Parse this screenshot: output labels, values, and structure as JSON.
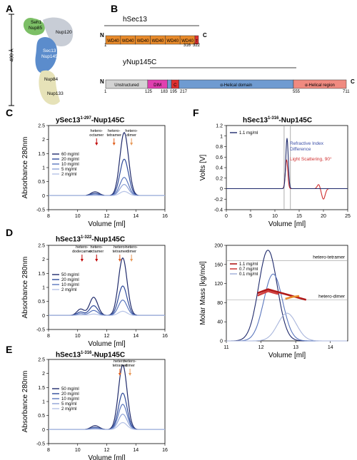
{
  "panels": {
    "A": {
      "label": "A",
      "structure_labels": [
        "Seh1",
        "Nup85",
        "Nup120",
        "Sec13",
        "Nup145",
        "Nup84",
        "Nup133"
      ],
      "scale_label": "~400 Å"
    },
    "B": {
      "label": "B",
      "hsec13": {
        "title": "hSec13",
        "n_label": "N",
        "c_label": "C",
        "domains": [
          "WD40",
          "WD40",
          "WD40",
          "WD40",
          "WD40",
          "WD40",
          "T"
        ],
        "ticks": [
          "1",
          "316",
          "322"
        ]
      },
      "ynup145c": {
        "title": "yNup145C",
        "n_label": "N",
        "c_label": "C",
        "domains": [
          "Unstructured",
          "DIM",
          "C",
          "α-Helical domain",
          "α-Helical region"
        ],
        "ticks": [
          "1",
          "125",
          "183",
          "195",
          "217",
          "555",
          "711"
        ]
      },
      "colors": {
        "wd40": "#e88a2a",
        "unstructured": "#d3d3d3",
        "dim": "#e040b0",
        "c": "#e03030",
        "helical": "#6f9bd1",
        "helical_region": "#f08a80"
      }
    },
    "C": {
      "label": "C",
      "title_main": "ySec13",
      "title_sup": "1-297",
      "title_rest": "-Nup145C",
      "arrows": [
        "hetero-\noctamer",
        "hetero-\ntetramer",
        "hetero-\ndimer"
      ],
      "legend": [
        "60 mg/ml",
        "20 mg/ml",
        "10 mg/ml",
        "5 mg/ml",
        "2 mg/ml"
      ]
    },
    "D": {
      "label": "D",
      "title_main": "hSec13",
      "title_sup": "1-322",
      "title_rest": "-Nup145C",
      "arrows": [
        "hetero-\ndodecamer",
        "hetero-\noctamer",
        "hetero-\ntetramer",
        "hetero-\ndimer"
      ],
      "legend": [
        "50 mg/ml",
        "20 mg/ml",
        "10 mg/ml",
        "2 mg/ml"
      ]
    },
    "E": {
      "label": "E",
      "title_main": "hSec13",
      "title_sup": "1-316",
      "title_rest": "-Nup145C",
      "arrows": [
        "hetero-\ntetramer",
        "hetero-\ndimer"
      ],
      "legend": [
        "50 mg/ml",
        "20 mg/ml",
        "10 mg/ml",
        "5 mg/ml",
        "2 mg/ml"
      ]
    },
    "F": {
      "label": "F",
      "title_main": "hSec13",
      "title_sup": "1-316",
      "title_rest": "-Nup145C",
      "top_legend": "1.1 mg/ml",
      "ri_label": "Refractive Index\nDifference",
      "ls_label": "Light Scattering, 90°",
      "bottom_legend": [
        "1.1 mg/ml",
        "0.7 mg/ml",
        "0.1 mg/ml"
      ],
      "ref_labels": [
        "hetero-tetramer",
        "hetero-dimer"
      ]
    }
  },
  "chart_data": [
    {
      "type": "line",
      "panel": "C",
      "xlabel": "Volume [ml]",
      "ylabel": "Absorbance 280nm",
      "xlim": [
        8,
        16
      ],
      "ylim": [
        -0.5,
        2.5
      ],
      "xticks": [
        8,
        10,
        12,
        14,
        16
      ],
      "yticks": [
        -0.5,
        0,
        0.5,
        1,
        1.5,
        2,
        2.5
      ],
      "peak_x": 13.2,
      "series": [
        {
          "name": "60 mg/ml",
          "peak": 2.25,
          "color": "#1f2a6b"
        },
        {
          "name": "20 mg/ml",
          "peak": 1.3,
          "color": "#2e4a9a"
        },
        {
          "name": "10 mg/ml",
          "peak": 0.65,
          "color": "#5a76bd"
        },
        {
          "name": "5 mg/ml",
          "peak": 0.4,
          "color": "#8ea2d6"
        },
        {
          "name": "2 mg/ml",
          "peak": 0.15,
          "color": "#b6c3e6"
        }
      ],
      "arrow_x": [
        11.3,
        12.5,
        13.7
      ]
    },
    {
      "type": "line",
      "panel": "D",
      "xlabel": "Volume [ml]",
      "ylabel": "Absorbance 280nm",
      "xlim": [
        8,
        16
      ],
      "ylim": [
        -0.5,
        2.5
      ],
      "xticks": [
        8,
        10,
        12,
        14,
        16
      ],
      "yticks": [
        -0.5,
        0,
        0.5,
        1,
        1.5,
        2,
        2.5
      ],
      "peak_x": 13.1,
      "series": [
        {
          "name": "50 mg/ml",
          "peak": 2.05,
          "shoulder": 0.65,
          "color": "#1f2a6b"
        },
        {
          "name": "20 mg/ml",
          "peak": 1.05,
          "shoulder": 0.35,
          "color": "#2e4a9a"
        },
        {
          "name": "10 mg/ml",
          "peak": 0.55,
          "shoulder": 0.18,
          "color": "#5a76bd"
        },
        {
          "name": "2 mg/ml",
          "peak": 0.15,
          "shoulder": 0.05,
          "color": "#b6c3e6"
        }
      ],
      "arrow_x": [
        10.3,
        11.3,
        12.9,
        13.7
      ]
    },
    {
      "type": "line",
      "panel": "E",
      "xlabel": "Volume [ml]",
      "ylabel": "Absorbance 280nm",
      "xlim": [
        8,
        16
      ],
      "ylim": [
        -0.5,
        2.5
      ],
      "xticks": [
        8,
        10,
        12,
        14,
        16
      ],
      "yticks": [
        -0.5,
        0,
        0.5,
        1,
        1.5,
        2,
        2.5
      ],
      "peak_x": 13.1,
      "series": [
        {
          "name": "50 mg/ml",
          "peak": 2.3,
          "color": "#1f2a6b"
        },
        {
          "name": "20 mg/ml",
          "peak": 1.3,
          "color": "#2e4a9a"
        },
        {
          "name": "10 mg/ml",
          "peak": 0.9,
          "color": "#5a76bd"
        },
        {
          "name": "5 mg/ml",
          "peak": 0.55,
          "color": "#8ea2d6"
        },
        {
          "name": "2 mg/ml",
          "peak": 0.25,
          "color": "#b6c3e6"
        }
      ],
      "arrow_x": [
        12.9,
        13.6
      ]
    },
    {
      "type": "line",
      "panel": "F-top",
      "xlabel": "Volume [ml]",
      "ylabel": "Volts [V]",
      "xlim": [
        0,
        25
      ],
      "ylim": [
        -0.4,
        1.2
      ],
      "xticks": [
        0,
        5,
        10,
        15,
        20,
        25
      ],
      "yticks": [
        -0.4,
        -0.2,
        0,
        0.2,
        0.4,
        0.6,
        0.8,
        1,
        1.2
      ],
      "ri_peak": {
        "x": 12.5,
        "y": 0.96
      },
      "ls_peak": {
        "x": 12.4,
        "y": 0.55
      },
      "ls_dip": {
        "x": 20,
        "y": -0.2
      },
      "vlines": [
        11.9,
        13.2
      ]
    },
    {
      "type": "line",
      "panel": "F-bottom",
      "xlabel": "Volume [ml]",
      "ylabel": "Molar Mass [kg/mol]",
      "xlim": [
        11,
        14.5
      ],
      "ylim": [
        0,
        200
      ],
      "xticks": [
        11,
        12,
        13,
        14
      ],
      "yticks": [
        0,
        40,
        80,
        120,
        160,
        200
      ],
      "refs": [
        168,
        86
      ],
      "series": [
        {
          "name": "1.1 mg/ml",
          "peak": 190,
          "peak_x": 12.2,
          "color": "#1f2a6b"
        },
        {
          "name": "0.7 mg/ml",
          "peak": 140,
          "peak_x": 12.35,
          "color": "#5a76bd"
        },
        {
          "name": "0.1 mg/ml",
          "peak": 58,
          "peak_x": 12.75,
          "color": "#a9b6dc"
        }
      ]
    }
  ]
}
